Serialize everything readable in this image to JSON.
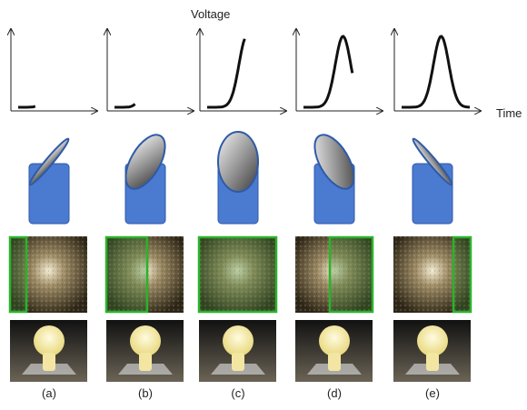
{
  "axis_labels": {
    "y": "Voltage",
    "x": "Time"
  },
  "panels": [
    {
      "label": "(a)"
    },
    {
      "label": "(b)"
    },
    {
      "label": "(c)"
    },
    {
      "label": "(d)"
    },
    {
      "label": "(e)"
    }
  ]
}
